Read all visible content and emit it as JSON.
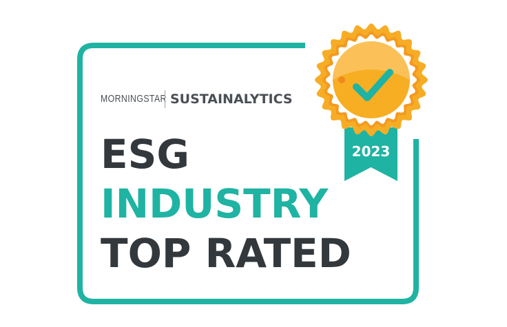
{
  "brand": {
    "morningstar": "MORNINGSTAR",
    "sustainalytics": "SUSTAINALYTICS"
  },
  "title": {
    "line1": "ESG",
    "line2": "INDUSTRY",
    "line3": "TOP RATED"
  },
  "badge": {
    "year": "2023",
    "icon": "check-icon"
  },
  "colors": {
    "teal": "#1fb3a3",
    "dark": "#33383d",
    "gold": "#f6ad25",
    "orange": "#f39a21"
  }
}
